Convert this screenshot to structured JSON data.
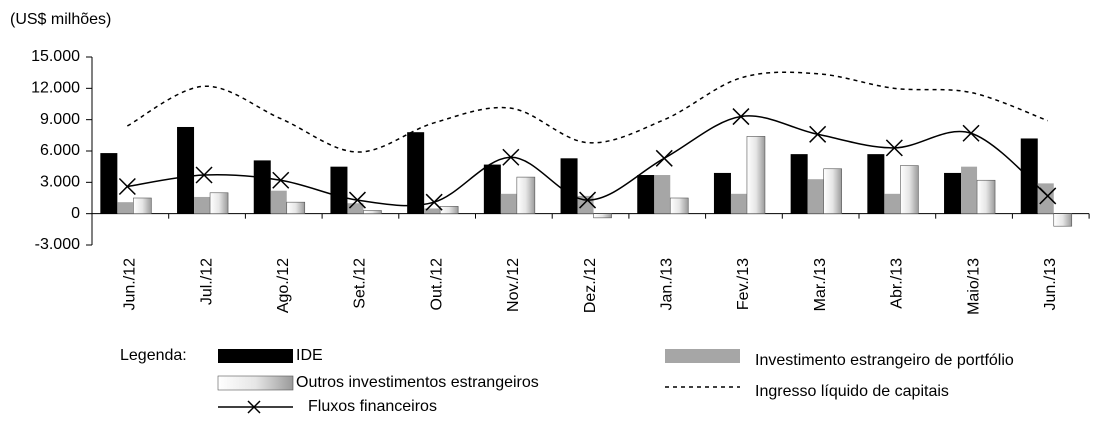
{
  "chart_data": {
    "type": "bar",
    "unit": "(US$ milhões)",
    "legend_label": "Legenda:",
    "categories": [
      "Jun./12",
      "Jul./12",
      "Ago./12",
      "Set./12",
      "Out./12",
      "Nov./12",
      "Dez./12",
      "Jan./13",
      "Fev./13",
      "Mar./13",
      "Abr./13",
      "Maio/13",
      "Jun./13"
    ],
    "series": [
      {
        "name": "IDE",
        "type": "bar",
        "color": "#000000",
        "values": [
          5800,
          8300,
          5100,
          4500,
          7800,
          4700,
          5300,
          3700,
          3900,
          5700,
          5700,
          3900,
          7200
        ]
      },
      {
        "name": "Investimento estrangeiro de portfólio",
        "type": "bar",
        "color": "#a6a6a6",
        "values": [
          1100,
          1600,
          2200,
          1000,
          500,
          1900,
          1700,
          3700,
          1900,
          3300,
          1900,
          4500,
          2900
        ]
      },
      {
        "name": "Outros investimentos estrangeiros",
        "type": "bar",
        "color": "#9a9a9a",
        "values": [
          1500,
          2000,
          1100,
          300,
          700,
          3500,
          -400,
          1500,
          7400,
          4300,
          4600,
          3200,
          -1200
        ]
      },
      {
        "name": "Ingresso líquido de capitais",
        "type": "line",
        "color": "#000000",
        "style": "dashed",
        "values": [
          8400,
          12200,
          9100,
          5900,
          8700,
          10100,
          6800,
          9000,
          13000,
          13400,
          12000,
          11600,
          8900
        ]
      },
      {
        "name": "Fluxos financeiros",
        "type": "line",
        "color": "#000000",
        "style": "solid",
        "marker": "x",
        "values": [
          2600,
          3700,
          3200,
          1300,
          1100,
          5400,
          1300,
          5300,
          9300,
          7600,
          6300,
          7700,
          1700
        ]
      }
    ],
    "ylim": [
      -3000,
      15000
    ],
    "yticks": [
      {
        "value": -3000,
        "label": "-3.000"
      },
      0,
      {
        "value": 3000,
        "label": "3.000"
      },
      {
        "value": 6000,
        "label": "6.000"
      },
      {
        "value": 9000,
        "label": "9.000"
      },
      {
        "value": 12000,
        "label": "12.000"
      },
      {
        "value": 15000,
        "label": "15.000"
      }
    ]
  }
}
